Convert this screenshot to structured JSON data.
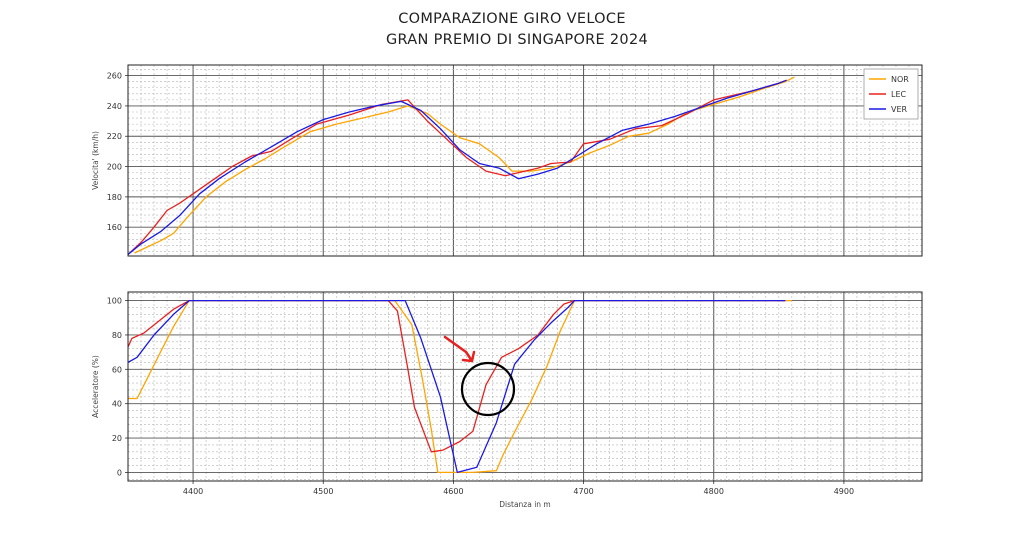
{
  "figure": {
    "title_line1": "COMPARAZIONE GIRO VELOCE",
    "title_line2": "GRAN PREMIO DI SINGAPORE 2024"
  },
  "colors": {
    "NOR": "#FFA500",
    "LEC": "#E8211F",
    "VER": "#1A1AE6",
    "annotation_arrow": "#E8211F",
    "annotation_circle": "#000000"
  },
  "annotations": {
    "arrow": "red-arrow-icon",
    "circle": "black-circle-highlight"
  },
  "chart_data": [
    {
      "type": "line",
      "title": "",
      "xlabel": "",
      "ylabel": "Velocita' (km/h)",
      "xlim": [
        4350,
        4960
      ],
      "ylim": [
        141,
        267
      ],
      "xticks": [
        4400,
        4500,
        4600,
        4700,
        4800,
        4900
      ],
      "yticks": [
        160,
        180,
        200,
        220,
        240,
        260
      ],
      "ytick_labels": [
        "160",
        "180",
        "200",
        "220",
        "240",
        "260"
      ],
      "grid": true,
      "legend_position": "top-right",
      "series": [
        {
          "name": "NOR",
          "x": [
            4355,
            4365,
            4375,
            4385,
            4395,
            4410,
            4425,
            4440,
            4455,
            4470,
            4490,
            4510,
            4530,
            4550,
            4565,
            4580,
            4590,
            4605,
            4620,
            4635,
            4645,
            4660,
            4675,
            4690,
            4705,
            4720,
            4735,
            4750,
            4765,
            4780,
            4800,
            4820,
            4840,
            4855,
            4862
          ],
          "y": [
            143,
            147,
            151,
            156,
            166,
            180,
            190,
            198,
            205,
            213,
            223,
            228,
            232,
            236,
            240,
            235,
            228,
            219,
            215,
            206,
            197,
            197,
            199,
            203,
            209,
            214,
            220,
            222,
            228,
            236,
            241,
            246,
            252,
            256,
            259
          ]
        },
        {
          "name": "LEC",
          "x": [
            4350,
            4360,
            4370,
            4380,
            4390,
            4400,
            4415,
            4430,
            4445,
            4460,
            4475,
            4495,
            4520,
            4545,
            4565,
            4580,
            4595,
            4610,
            4625,
            4640,
            4650,
            4665,
            4675,
            4690,
            4700,
            4720,
            4740,
            4760,
            4780,
            4800,
            4830,
            4850,
            4856
          ],
          "y": [
            142,
            150,
            160,
            171,
            176,
            182,
            191,
            200,
            207,
            210,
            218,
            228,
            234,
            241,
            244,
            230,
            218,
            206,
            197,
            194,
            196,
            199,
            202,
            203,
            215,
            218,
            225,
            227,
            235,
            244,
            250,
            255,
            257
          ]
        },
        {
          "name": "VER",
          "x": [
            4350,
            4360,
            4375,
            4390,
            4405,
            4420,
            4440,
            4460,
            4480,
            4500,
            4520,
            4540,
            4560,
            4575,
            4590,
            4605,
            4620,
            4635,
            4650,
            4665,
            4680,
            4695,
            4710,
            4730,
            4750,
            4770,
            4790,
            4810,
            4830,
            4850,
            4856
          ],
          "y": [
            142,
            149,
            157,
            168,
            182,
            192,
            203,
            213,
            223,
            231,
            236,
            240,
            243,
            237,
            225,
            211,
            202,
            199,
            192,
            195,
            199,
            207,
            215,
            224,
            228,
            233,
            239,
            245,
            250,
            255,
            257
          ]
        }
      ]
    },
    {
      "type": "line",
      "title": "",
      "xlabel": "Distanza in m",
      "ylabel": "Acceleratore (%)",
      "xlim": [
        4350,
        4960
      ],
      "ylim": [
        -5,
        105
      ],
      "xticks": [
        4400,
        4500,
        4600,
        4700,
        4800,
        4900
      ],
      "xtick_labels": [
        "4400",
        "4500",
        "4600",
        "4700",
        "4800",
        "4900"
      ],
      "yticks": [
        0,
        20,
        40,
        60,
        80,
        100
      ],
      "ytick_labels": [
        "0",
        "20",
        "40",
        "60",
        "80",
        "100"
      ],
      "grid": true,
      "series": [
        {
          "name": "NOR",
          "x": [
            4350,
            4357,
            4365,
            4375,
            4385,
            4397,
            4401,
            4500,
            4555,
            4568,
            4576,
            4583,
            4588,
            4600,
            4615,
            4633,
            4638,
            4648,
            4660,
            4672,
            4682,
            4693,
            4860
          ],
          "y": [
            43,
            43,
            55,
            70,
            85,
            100,
            100,
            100,
            100,
            86,
            55,
            25,
            0,
            0,
            0,
            1,
            10,
            25,
            42,
            62,
            82,
            100,
            100
          ]
        },
        {
          "name": "LEC",
          "x": [
            4350,
            4353,
            4362,
            4372,
            4385,
            4397,
            4401,
            4500,
            4550,
            4557,
            4565,
            4570,
            4583,
            4592,
            4605,
            4615,
            4625,
            4637,
            4650,
            4665,
            4677,
            4685,
            4693,
            4855
          ],
          "y": [
            73,
            78,
            81,
            87,
            95,
            100,
            100,
            100,
            100,
            94,
            60,
            38,
            12,
            13,
            18,
            24,
            51,
            67,
            72,
            80,
            92,
            98,
            100,
            100
          ]
        },
        {
          "name": "VER",
          "x": [
            4350,
            4357,
            4370,
            4385,
            4397,
            4401,
            4500,
            4563,
            4575,
            4590,
            4603,
            4618,
            4633,
            4647,
            4662,
            4675,
            4688,
            4693,
            4855
          ],
          "y": [
            64,
            67,
            80,
            92,
            100,
            100,
            100,
            100,
            78,
            44,
            0,
            3,
            29,
            63,
            77,
            87,
            96,
            100,
            100
          ]
        }
      ]
    }
  ]
}
